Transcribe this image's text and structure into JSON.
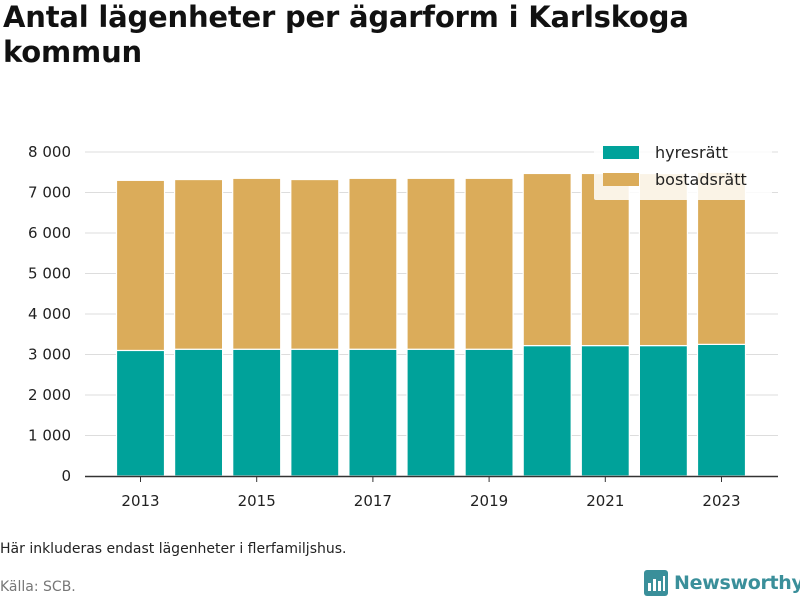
{
  "title": "Antal lägenheter per ägarform i Karlskoga kommun",
  "note": "Här inkluderas endast lägenheter i flerfamiljshus.",
  "source": "Källa: SCB.",
  "brand": "Newsworthy",
  "colors": {
    "hyresratt": "#00a29a",
    "bostadsratt": "#dbac5a",
    "grid": "#dddddd",
    "axis": "#333333",
    "brand": "#3a8f9a"
  },
  "chart_data": {
    "type": "bar",
    "stacked": true,
    "x": [
      2013,
      2014,
      2015,
      2016,
      2017,
      2018,
      2019,
      2020,
      2021,
      2022,
      2023
    ],
    "x_tick_labels": [
      "2013",
      "2015",
      "2017",
      "2019",
      "2021",
      "2023"
    ],
    "y_ticks": [
      0,
      1000,
      2000,
      3000,
      4000,
      5000,
      6000,
      7000,
      8000
    ],
    "y_tick_labels": [
      "0",
      "1 000",
      "2 000",
      "3 000",
      "4 000",
      "5 000",
      "6 000",
      "7 000",
      "8 000"
    ],
    "ylim": [
      0,
      8000
    ],
    "grid": true,
    "legend_position": "top-right",
    "series": [
      {
        "name": "hyresrätt",
        "color": "#00a29a",
        "values": [
          3100,
          3130,
          3130,
          3130,
          3130,
          3130,
          3130,
          3220,
          3220,
          3220,
          3250
        ]
      },
      {
        "name": "bostadsrätt",
        "color": "#dbac5a",
        "values": [
          4200,
          4190,
          4220,
          4190,
          4220,
          4220,
          4220,
          4250,
          4250,
          4250,
          4250
        ]
      }
    ]
  }
}
